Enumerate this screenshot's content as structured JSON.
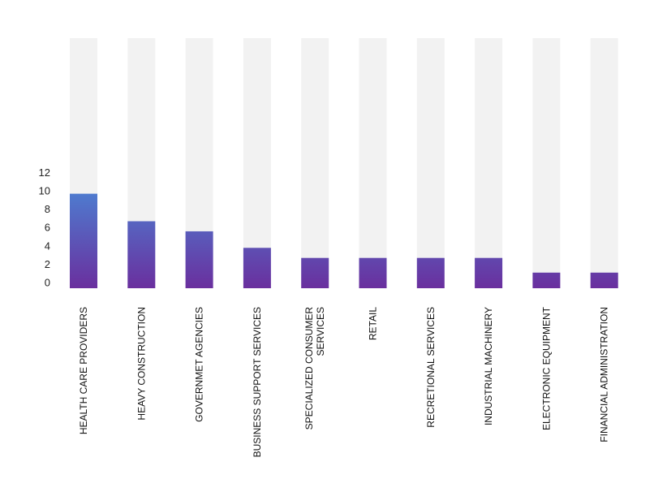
{
  "chart_data": {
    "type": "bar",
    "title": "",
    "xlabel": "",
    "ylabel": "",
    "ylim": [
      0,
      13
    ],
    "yticks": [
      0,
      2,
      4,
      6,
      8,
      10,
      12
    ],
    "grid": false,
    "legend": "none",
    "categories": [
      "HEALTH CARE PROVIDERS",
      "HEAVY CONSTRUCTION",
      "GOVERNMET AGENCIES",
      "BUSINESS SUPPORT SERVICES",
      "SPECIALIZED CONSUMER SERVICES",
      "RETAIL",
      "RECRETIONAL SERVICES",
      "INDUSTRIAL MACHINERY",
      "ELECTRONIC EQUIPMENT",
      "FINANCIAL ADMINISTRATION"
    ],
    "category_lines": [
      [
        "HEALTH CARE PROVIDERS"
      ],
      [
        "HEAVY CONSTRUCTION"
      ],
      [
        "GOVERNMET AGENCIES"
      ],
      [
        "BUSINESS SUPPORT SERVICES"
      ],
      [
        "SPECIALIZED CONSUMER",
        "SERVICES"
      ],
      [
        "RETAIL"
      ],
      [
        "RECRETIONAL SERVICES"
      ],
      [
        "INDUSTRIAL MACHINERY"
      ],
      [
        "ELECTRONIC EQUIPMENT"
      ],
      [
        "FINANCIAL ADMINISTRATION"
      ]
    ],
    "values": [
      10.3,
      7.3,
      6.2,
      4.4,
      3.3,
      3.3,
      3.3,
      3.3,
      1.7,
      1.7
    ],
    "colors": {
      "track": "#f2f2f2",
      "gradient_top": "#22b5ee",
      "gradient_mid": "#4a86d6",
      "gradient_bottom": "#6a2f9e"
    }
  }
}
